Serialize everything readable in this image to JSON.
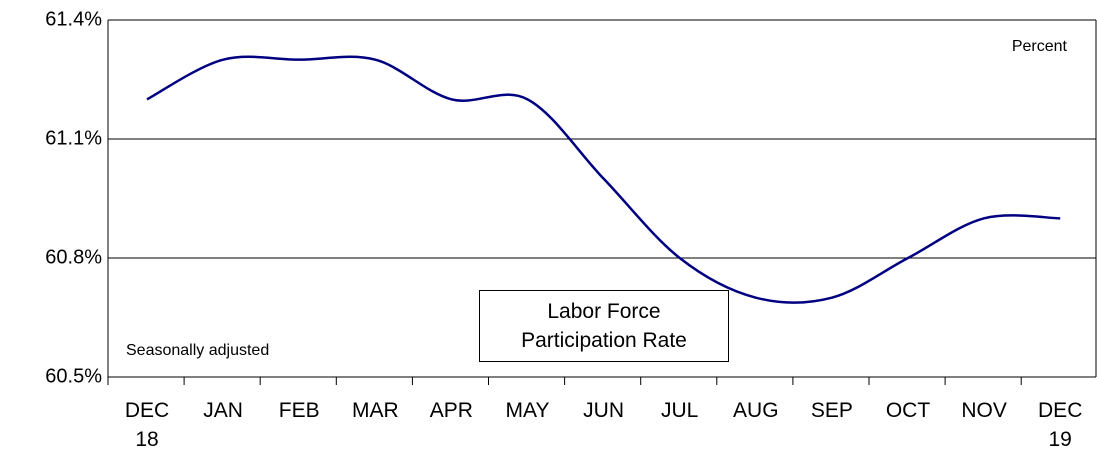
{
  "chart_data": {
    "type": "line",
    "categories": [
      "DEC\n18",
      "JAN",
      "FEB",
      "MAR",
      "APR",
      "MAY",
      "JUN",
      "JUL",
      "AUG",
      "SEP",
      "OCT",
      "NOV",
      "DEC\n19"
    ],
    "values": [
      61.2,
      61.3,
      61.3,
      61.3,
      61.2,
      61.2,
      61.0,
      60.8,
      60.7,
      60.7,
      60.8,
      60.9,
      60.9
    ],
    "color": "#000080",
    "ylim": [
      60.5,
      61.4
    ],
    "yticks": [
      {
        "value": 60.5,
        "label": "60.5%"
      },
      {
        "value": 60.8,
        "label": "60.8%"
      },
      {
        "value": 61.1,
        "label": "61.1%"
      },
      {
        "value": 61.4,
        "label": "61.4%"
      }
    ],
    "grid": true,
    "annotations": [
      "Percent",
      "Seasonally adjusted",
      "Labor Force\nParticipation Rate"
    ]
  }
}
